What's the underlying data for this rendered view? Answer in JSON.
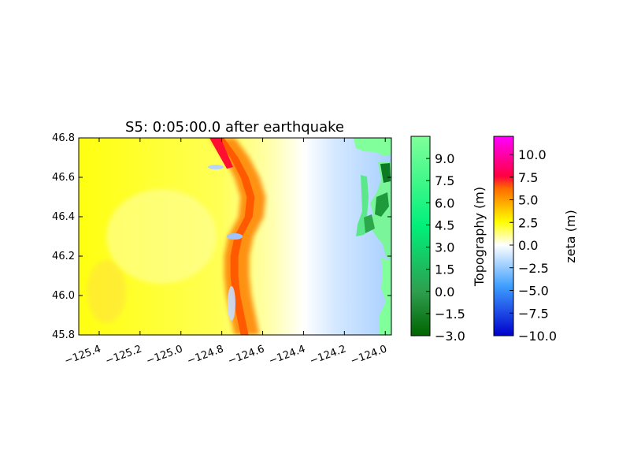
{
  "chart_data": {
    "type": "heatmap",
    "title": "S5: 0:05:00.0 after earthquake",
    "xlabel": "",
    "ylabel": "",
    "xlim": [
      -125.5,
      -123.97
    ],
    "ylim": [
      45.8,
      46.8
    ],
    "x_ticks": [
      "−125.4",
      "−125.2",
      "−125.0",
      "−124.8",
      "−124.6",
      "−124.4",
      "−124.2",
      "−124.0"
    ],
    "x_tick_values": [
      -125.4,
      -125.2,
      -125.0,
      -124.8,
      -124.6,
      -124.4,
      -124.2,
      -124.0
    ],
    "y_ticks": [
      "45.8",
      "46.0",
      "46.2",
      "46.4",
      "46.6",
      "46.8"
    ],
    "y_tick_values": [
      45.8,
      46.0,
      46.2,
      46.4,
      46.6,
      46.8
    ],
    "front": {
      "description_values": [
        {
          "lat": 46.8,
          "lon": -124.82
        },
        {
          "lat": 46.7,
          "lon": -124.75
        },
        {
          "lat": 46.6,
          "lon": -124.7
        },
        {
          "lat": 46.5,
          "lon": -124.67
        },
        {
          "lat": 46.4,
          "lon": -124.68
        },
        {
          "lat": 46.3,
          "lon": -124.73
        },
        {
          "lat": 46.2,
          "lon": -124.75
        },
        {
          "lat": 46.1,
          "lon": -124.75
        },
        {
          "lat": 46.0,
          "lon": -124.74
        },
        {
          "lat": 45.9,
          "lon": -124.72
        },
        {
          "lat": 45.8,
          "lon": -124.7
        }
      ]
    },
    "colorbars": [
      {
        "label": "Topography (m)",
        "min": -3.0,
        "max": 10.5,
        "ticks": [
          "9.0",
          "7.5",
          "6.0",
          "4.5",
          "3.0",
          "1.5",
          "0.0",
          "−1.5",
          "−3.0"
        ],
        "tick_values": [
          9.0,
          7.5,
          6.0,
          4.5,
          3.0,
          1.5,
          0.0,
          -1.5,
          -3.0
        ],
        "colors": [
          "#006400",
          "#2e9e4f",
          "#00f07a",
          "#80ff9a"
        ]
      },
      {
        "label": "zeta (m)",
        "min": -10.0,
        "max": 12.0,
        "ticks": [
          "10.0",
          "7.5",
          "5.0",
          "2.5",
          "0.0",
          "−2.5",
          "−5.0",
          "−7.5",
          "−10.0"
        ],
        "tick_values": [
          10.0,
          7.5,
          5.0,
          2.5,
          0.0,
          -2.5,
          -5.0,
          -7.5,
          -10.0
        ],
        "colors": [
          "#0000cc",
          "#3f9fff",
          "#ffffff",
          "#ffff00",
          "#ff6a00",
          "#ff0040",
          "#ff00ff"
        ]
      }
    ]
  }
}
